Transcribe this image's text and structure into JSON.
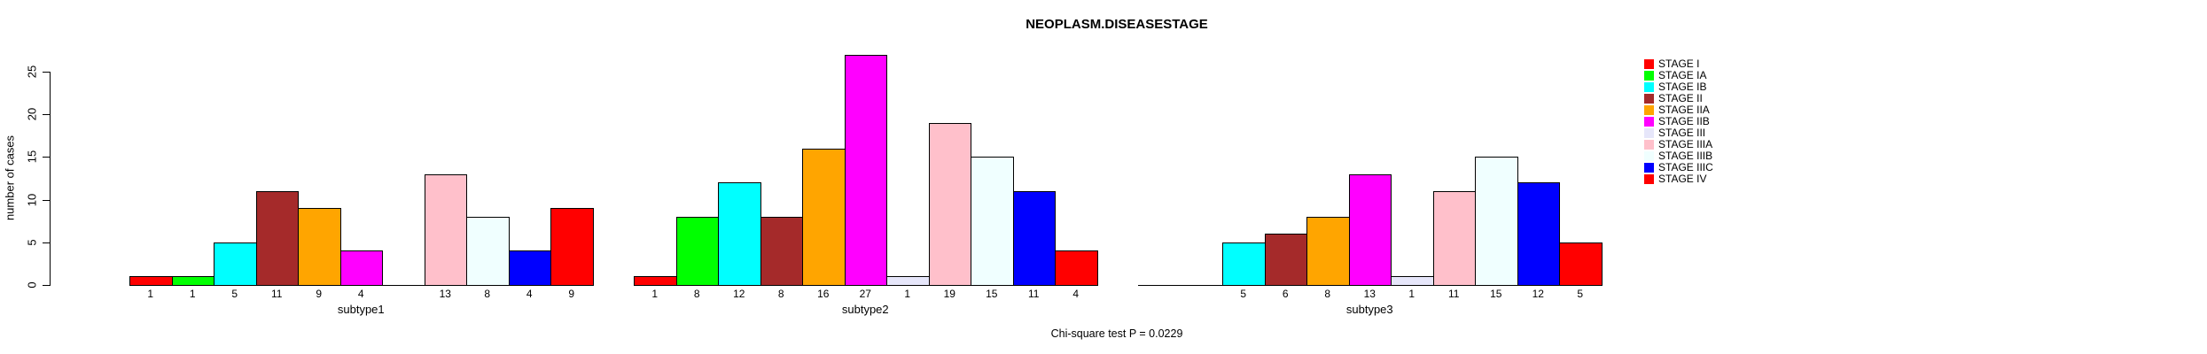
{
  "title": "NEOPLASM.DISEASESTAGE",
  "caption": "Chi-square test P = 0.0229",
  "chart_data": {
    "type": "bar",
    "title": "NEOPLASM.DISEASESTAGE",
    "xlabel": "",
    "ylabel": "number of cases",
    "ylim": [
      0,
      25
    ],
    "yticks": [
      0,
      5,
      10,
      15,
      20,
      25
    ],
    "grid": false,
    "legend_position": "right",
    "bar_value_labels": true,
    "categories": [
      "subtype1",
      "subtype2",
      "subtype3"
    ],
    "series": [
      {
        "name": "STAGE I",
        "color": "#FF0000",
        "values": [
          1,
          1,
          0
        ]
      },
      {
        "name": "STAGE IA",
        "color": "#00FF00",
        "values": [
          1,
          8,
          0
        ]
      },
      {
        "name": "STAGE IB",
        "color": "#00FFFF",
        "values": [
          5,
          12,
          5
        ]
      },
      {
        "name": "STAGE II",
        "color": "#A52A2A",
        "values": [
          11,
          8,
          6
        ]
      },
      {
        "name": "STAGE IIA",
        "color": "#FFA500",
        "values": [
          9,
          16,
          8
        ]
      },
      {
        "name": "STAGE IIB",
        "color": "#FF00FF",
        "values": [
          4,
          27,
          13
        ]
      },
      {
        "name": "STAGE III",
        "color": "#E6E6FA",
        "values": [
          0,
          1,
          1
        ]
      },
      {
        "name": "STAGE IIIA",
        "color": "#FFC0CB",
        "values": [
          13,
          19,
          11
        ]
      },
      {
        "name": "STAGE IIIB",
        "color": "#F0FFFF",
        "values": [
          8,
          15,
          15
        ]
      },
      {
        "name": "STAGE IIIC",
        "color": "#0000FF",
        "values": [
          4,
          11,
          12
        ]
      },
      {
        "name": "STAGE IV",
        "color": "#FF0000",
        "values": [
          9,
          4,
          5
        ]
      }
    ]
  }
}
